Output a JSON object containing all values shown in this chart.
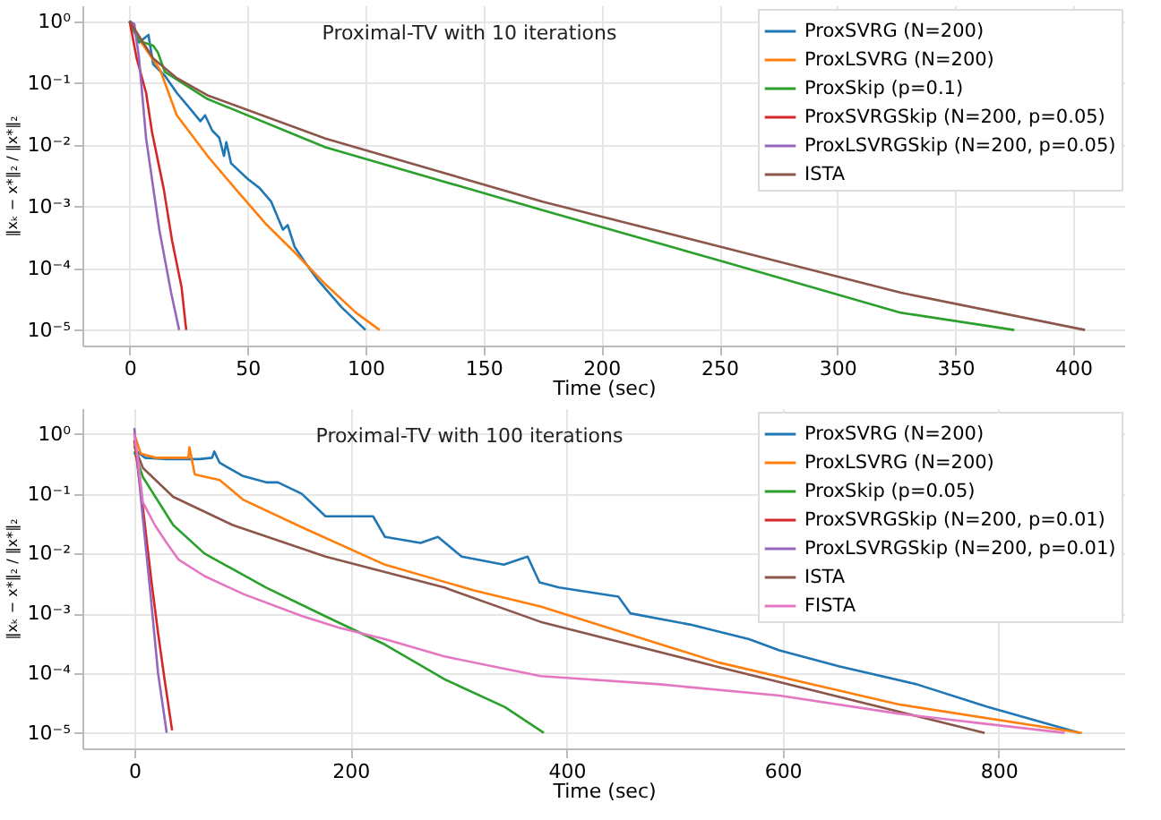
{
  "chart_data": [
    {
      "type": "line",
      "title": "Proximal-TV with 10 iterations",
      "xlabel": "Time (sec)",
      "ylabel": "‖xₖ − x*‖₂ / ‖x*‖₂",
      "log": "y",
      "grid": true,
      "legend": "top right",
      "xlim": [
        -20,
        422
      ],
      "xticks": [
        0,
        50,
        100,
        150,
        200,
        250,
        300,
        350,
        400
      ],
      "ylim": [
        5.6e-06,
        1.8
      ],
      "yticks": [
        {
          "value": 1,
          "label": "10⁰"
        },
        {
          "value": 0.1,
          "label": "10⁻¹"
        },
        {
          "value": 0.01,
          "label": "10⁻²"
        },
        {
          "value": 0.001,
          "label": "10⁻³"
        },
        {
          "value": 0.0001,
          "label": "10⁻⁴"
        },
        {
          "value": 1e-05,
          "label": "10⁻⁵"
        }
      ],
      "series": [
        {
          "name": "ProxSVRG (N=200)",
          "color": "#1f77b4",
          "x": [
            0,
            4,
            8,
            10,
            15,
            20,
            25,
            30,
            32,
            35,
            38,
            40,
            41,
            43,
            50,
            55,
            60,
            65,
            67,
            70,
            75,
            80,
            90,
            100
          ],
          "values": [
            1,
            0.45,
            0.6,
            0.2,
            0.13,
            0.069,
            0.041,
            0.024,
            0.03,
            0.017,
            0.013,
            0.0066,
            0.011,
            0.005,
            0.0028,
            0.002,
            0.0012,
            0.00042,
            0.0005,
            0.00022,
            0.000115,
            6.3e-05,
            2.3e-05,
            1e-05
          ]
        },
        {
          "name": "ProxLSVRG (N=200)",
          "color": "#ff7f0e",
          "x": [
            0,
            5,
            13,
            20,
            33,
            45,
            58,
            70,
            83,
            96,
            106
          ],
          "values": [
            1,
            0.45,
            0.16,
            0.03,
            0.0066,
            0.0019,
            0.00051,
            0.00018,
            5.5e-05,
            1.9e-05,
            1e-05
          ]
        },
        {
          "name": "ProxSkip (p=0.1)",
          "color": "#2ca02c",
          "x": [
            0,
            4,
            10,
            12,
            15,
            33,
            83,
            175,
            251,
            327,
            375
          ],
          "values": [
            1,
            0.48,
            0.4,
            0.31,
            0.15,
            0.055,
            0.0091,
            0.00087,
            0.00013,
            1.9e-05,
            1e-05
          ]
        },
        {
          "name": "ProxSVRGSkip (N=200, p=0.05)",
          "color": "#d62728",
          "x": [
            0,
            3,
            7,
            9.5,
            14.5,
            18,
            22,
            24
          ],
          "values": [
            1,
            0.25,
            0.069,
            0.016,
            0.0019,
            0.00028,
            5e-05,
            1e-05
          ]
        },
        {
          "name": "ProxLSVRGSkip (N=200, p=0.05)",
          "color": "#9467bd",
          "x": [
            0,
            2,
            4,
            7,
            12.6,
            17.6,
            21
          ],
          "values": [
            1,
            0.9,
            0.25,
            0.0126,
            0.00042,
            4e-05,
            1e-05
          ]
        },
        {
          "name": "ISTA",
          "color": "#8c564b",
          "x": [
            0,
            10,
            20,
            33,
            83,
            175,
            251,
            327,
            405
          ],
          "values": [
            1,
            0.25,
            0.12,
            0.063,
            0.0126,
            0.0012,
            0.00022,
            4e-05,
            1e-05
          ]
        }
      ]
    },
    {
      "type": "line",
      "title": "Proximal-TV with 100 iterations",
      "xlabel": "Time (sec)",
      "ylabel": "‖xₖ − x*‖₂ / ‖x*‖₂",
      "log": "y",
      "grid": true,
      "legend": "top right",
      "xlim": [
        -48,
        917
      ],
      "xticks": [
        0,
        200,
        400,
        600,
        800
      ],
      "ylim": [
        5.5e-06,
        2.7
      ],
      "yticks": [
        {
          "value": 1,
          "label": "10⁰"
        },
        {
          "value": 0.1,
          "label": "10⁻¹"
        },
        {
          "value": 0.01,
          "label": "10⁻²"
        },
        {
          "value": 0.001,
          "label": "10⁻³"
        },
        {
          "value": 0.0001,
          "label": "10⁻⁴"
        },
        {
          "value": 1e-05,
          "label": "10⁻⁵"
        }
      ],
      "series": [
        {
          "name": "ProxSVRG (N=200)",
          "color": "#1f77b4",
          "x": [
            3,
            10,
            30,
            60,
            72,
            74,
            79,
            100,
            122,
            133,
            155,
            177,
            221,
            232,
            265,
            281,
            303,
            342,
            364,
            375,
            393,
            448,
            459,
            514,
            569,
            597,
            652,
            724,
            790,
            875
          ],
          "values": [
            0.5,
            0.4,
            0.38,
            0.38,
            0.4,
            0.51,
            0.33,
            0.2,
            0.155,
            0.155,
            0.1,
            0.042,
            0.042,
            0.019,
            0.015,
            0.019,
            0.0089,
            0.0065,
            0.0089,
            0.0033,
            0.0027,
            0.0019,
            0.001,
            0.00065,
            0.00037,
            0.00024,
            0.00013,
            6.5e-05,
            2.7e-05,
            1e-05
          ]
        },
        {
          "name": "ProxLSVRG (N=200)",
          "color": "#ff7f0e",
          "x": [
            0,
            6,
            20,
            50,
            51,
            56,
            79,
            101,
            156,
            232,
            315,
            376,
            541,
            707,
            877
          ],
          "values": [
            1,
            0.47,
            0.4,
            0.4,
            0.6,
            0.21,
            0.17,
            0.079,
            0.027,
            0.0065,
            0.0024,
            0.0013,
            0.00015,
            3e-05,
            1e-05
          ]
        },
        {
          "name": "ProxSkip (p=0.05)",
          "color": "#2ca02c",
          "x": [
            0,
            8,
            36,
            65,
            122,
            177,
            232,
            287,
            343,
            379
          ],
          "values": [
            0.51,
            0.19,
            0.03,
            0.01,
            0.0027,
            0.00089,
            0.0003,
            7.9e-05,
            2.7e-05,
            1e-05
          ]
        },
        {
          "name": "ProxSVRGSkip (N=200, p=0.01)",
          "color": "#d62728",
          "x": [
            0,
            8,
            16,
            22,
            28,
            35
          ],
          "values": [
            0.79,
            0.058,
            0.0033,
            0.00047,
            7.9e-05,
            1.1e-05
          ]
        },
        {
          "name": "ProxLSVRGSkip (N=200, p=0.01)",
          "color": "#9467bd",
          "x": [
            0,
            7,
            15,
            22,
            30
          ],
          "values": [
            1.26,
            0.058,
            0.0021,
            0.0001,
            1e-05
          ]
        },
        {
          "name": "ISTA",
          "color": "#8c564b",
          "x": [
            0,
            8,
            36,
            91,
            177,
            287,
            376,
            541,
            787
          ],
          "values": [
            0.63,
            0.27,
            0.089,
            0.03,
            0.0089,
            0.0027,
            0.00072,
            0.000126,
            1e-05
          ]
        },
        {
          "name": "FISTA",
          "color": "#e377c2",
          "x": [
            0,
            3,
            8,
            19,
            30,
            41,
            65,
            101,
            156,
            189,
            232,
            287,
            376,
            486,
            597,
            707,
            790,
            861
          ],
          "values": [
            1,
            0.42,
            0.072,
            0.03,
            0.015,
            0.0079,
            0.0042,
            0.0021,
            0.00089,
            0.00058,
            0.00037,
            0.00019,
            8.9e-05,
            6.5e-05,
            4.2e-05,
            2.1e-05,
            1.4e-05,
            1e-05
          ]
        }
      ]
    }
  ]
}
